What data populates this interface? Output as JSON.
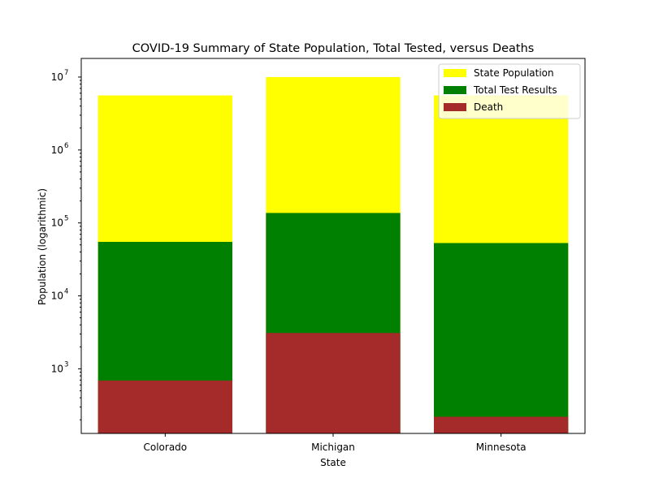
{
  "chart_data": {
    "type": "bar",
    "stacked": "overlay",
    "title": "COVID-19 Summary of State Population, Total Tested, versus Deaths",
    "xlabel": "State",
    "ylabel": "Population (logarithmic)",
    "yscale": "log",
    "ylim": [
      130,
      18000000
    ],
    "yticks": [
      {
        "base": "10",
        "exp": "3",
        "value": 1000
      },
      {
        "base": "10",
        "exp": "4",
        "value": 10000
      },
      {
        "base": "10",
        "exp": "5",
        "value": 100000
      },
      {
        "base": "10",
        "exp": "6",
        "value": 1000000
      },
      {
        "base": "10",
        "exp": "7",
        "value": 10000000
      }
    ],
    "categories": [
      "Colorado",
      "Michigan",
      "Minnesota"
    ],
    "series": [
      {
        "name": "State Population",
        "color": "#ffff00",
        "values": [
          5600000,
          10000000,
          5600000
        ]
      },
      {
        "name": "Total Test Results",
        "color": "#008000",
        "values": [
          55000,
          137000,
          53000
        ]
      },
      {
        "name": "Death",
        "color": "#a52a2a",
        "values": [
          690,
          3100,
          220
        ]
      }
    ],
    "legend": "top-right",
    "grid": false
  }
}
